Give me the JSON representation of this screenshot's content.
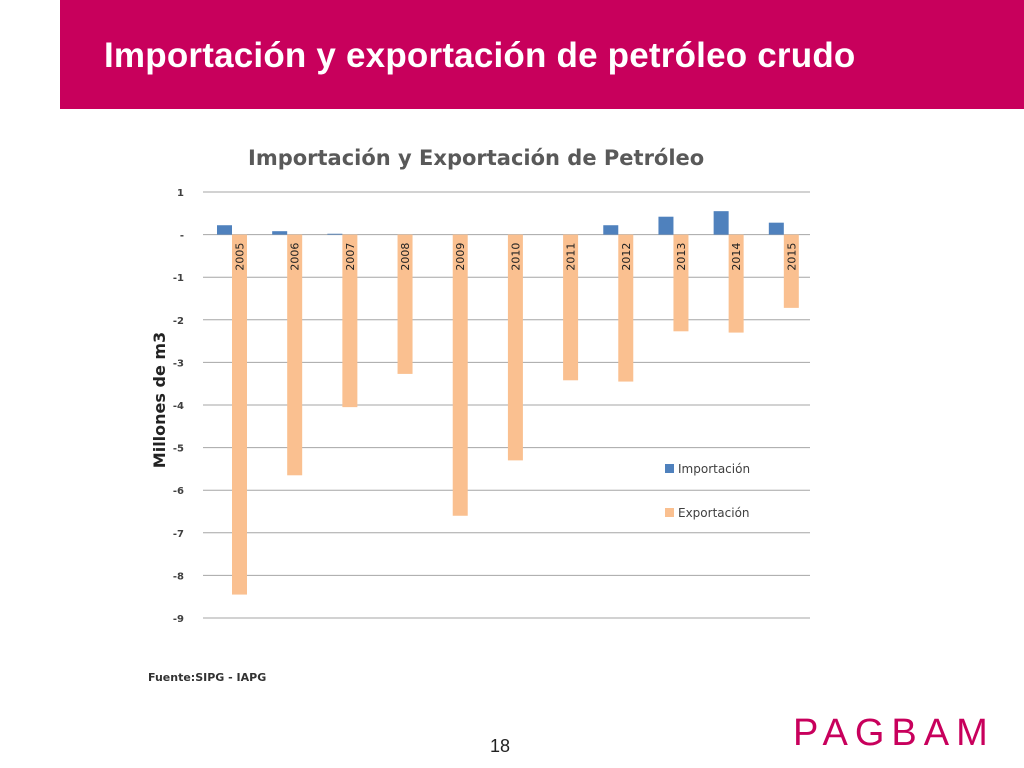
{
  "slide": {
    "title": "Importación y exportación de petróleo crudo",
    "page_number": "18",
    "brand": "PAGBAM"
  },
  "colors": {
    "header": "#c8005c",
    "import": "#4f81bd",
    "export": "#fac090",
    "brand": "#c8005c"
  },
  "chart_data": {
    "type": "bar",
    "title": "Importación y Exportación de Petróleo",
    "xlabel": "",
    "ylabel": "Millones de m3",
    "source": "Fuente:SIPG - IAPG",
    "categories": [
      "2005",
      "2006",
      "2007",
      "2008",
      "2009",
      "2010",
      "2011",
      "2012",
      "2013",
      "2014",
      "2015"
    ],
    "series": [
      {
        "name": "Importación",
        "values": [
          0.22,
          0.08,
          0.02,
          0,
          0,
          0,
          0,
          0.22,
          0.42,
          0.55,
          0.28
        ]
      },
      {
        "name": "Exportación",
        "values": [
          -8.45,
          -5.65,
          -4.05,
          -3.27,
          -6.6,
          -5.3,
          -3.42,
          -3.45,
          -2.27,
          -2.3,
          -1.72
        ]
      }
    ],
    "ylim": [
      -9,
      1
    ],
    "yticks": [
      1,
      0,
      -1,
      -2,
      -3,
      -4,
      -5,
      -6,
      -7,
      -8,
      -9
    ],
    "ytick_labels": [
      "1",
      "-",
      "-1",
      "-2",
      "-3",
      "-4",
      "-5",
      "-6",
      "-7",
      "-8",
      "-9"
    ],
    "grid": true,
    "legend_position": "right"
  }
}
